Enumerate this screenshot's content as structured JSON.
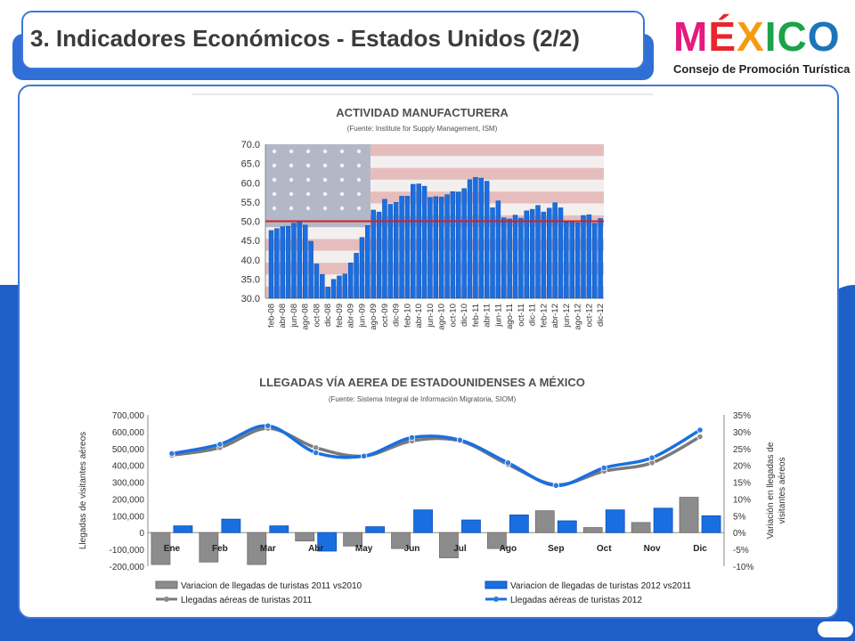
{
  "header": {
    "title": "3. Indicadores Económicos - Estados Unidos (2/2)"
  },
  "logo": {
    "letters": [
      "M",
      "É",
      "X",
      "I",
      "C",
      "O"
    ],
    "letter_colors": [
      "#e5197e",
      "#e8262b",
      "#f39c12",
      "#1aa34a",
      "#1aa34a",
      "#1b75bb"
    ],
    "subtitle": "Consejo de Promoción Turística"
  },
  "colors": {
    "accent_blue": "#1f5fc9",
    "bar_blue": "#1a6fe0",
    "bar_gray": "#8c8c8c",
    "threshold_red": "#d42020"
  },
  "chart_data": [
    {
      "type": "bar",
      "title": "ACTIVIDAD MANUFACTURERA",
      "subtitle": "(Fuente: Institute for Supply Management, ISM)",
      "ylim": [
        30,
        70
      ],
      "yticks": [
        "70.0",
        "65.0",
        "60.0",
        "55.0",
        "50.0",
        "45.0",
        "40.0",
        "35.0",
        "30.0"
      ],
      "reference_line": 50,
      "background": "us-flag",
      "categories": [
        "feb-08",
        "mar-08",
        "abr-08",
        "may-08",
        "jun-08",
        "jul-08",
        "ago-08",
        "sep-08",
        "oct-08",
        "nov-08",
        "dic-08",
        "ene-09",
        "feb-09",
        "mar-09",
        "abr-09",
        "may-09",
        "jun-09",
        "jul-09",
        "ago-09",
        "sep-09",
        "oct-09",
        "nov-09",
        "dic-09",
        "ene-10",
        "feb-10",
        "mar-10",
        "abr-10",
        "may-10",
        "jun-10",
        "jul-10",
        "ago-10",
        "sep-10",
        "oct-10",
        "nov-10",
        "dic-10",
        "ene-11",
        "feb-11",
        "mar-11",
        "abr-11",
        "may-11",
        "jun-11",
        "jul-11",
        "ago-11",
        "sep-11",
        "oct-11",
        "nov-11",
        "dic-11",
        "ene-12",
        "feb-12",
        "mar-12",
        "abr-12",
        "may-12",
        "jun-12",
        "jul-12",
        "ago-12",
        "sep-12",
        "oct-12",
        "nov-12",
        "dic-12"
      ],
      "tick_labels": [
        "feb-08",
        "abr-08",
        "jun-08",
        "ago-08",
        "oct-08",
        "dic-08",
        "feb-09",
        "abr-09",
        "jun-09",
        "ago-09",
        "oct-09",
        "dic-09",
        "feb-10",
        "abr-10",
        "jun-10",
        "ago-10",
        "oct-10",
        "dic-10",
        "feb-11",
        "abr-11",
        "jun-11",
        "ago-11",
        "oct-11",
        "dic-11",
        "feb-12",
        "abr-12",
        "jun-12",
        "ago-12",
        "oct-12",
        "dic-12"
      ],
      "values": [
        47.6,
        48.1,
        48.6,
        48.7,
        49.5,
        49.9,
        49.0,
        44.8,
        38.9,
        36.2,
        32.9,
        34.9,
        35.8,
        36.3,
        39.2,
        41.7,
        45.8,
        48.9,
        52.9,
        52.4,
        55.7,
        54.4,
        54.9,
        56.5,
        56.5,
        59.6,
        59.7,
        59.1,
        56.2,
        56.4,
        56.3,
        56.9,
        57.7,
        57.6,
        58.5,
        60.8,
        61.4,
        61.2,
        60.4,
        53.5,
        55.3,
        50.9,
        50.6,
        51.6,
        50.8,
        52.7,
        53.1,
        54.1,
        52.4,
        53.4,
        54.8,
        53.5,
        49.7,
        49.8,
        49.6,
        51.5,
        51.7,
        49.5,
        50.7
      ]
    },
    {
      "type": "bar+line",
      "title": "LLEGADAS VÍA AEREA DE ESTADOUNIDENSES A MÉXICO",
      "subtitle": "(Fuente: Sistema Integral de Información Migratoria, SIOM)",
      "categories": [
        "Ene",
        "Feb",
        "Mar",
        "Abr",
        "May",
        "Jun",
        "Jul",
        "Ago",
        "Sep",
        "Oct",
        "Nov",
        "Dic"
      ],
      "y_left_label": "Llegadas de visitantes aéreos",
      "y_right_label_line1": "Variación en llegadas de",
      "y_right_label_line2": "visitantes aéreos",
      "y_left_ticks": [
        "700,000",
        "600,000",
        "500,000",
        "400,000",
        "300,000",
        "200,000",
        "100,000",
        "0",
        "-100,000",
        "-200,000"
      ],
      "y_right_ticks": [
        "35%",
        "30%",
        "25%",
        "20%",
        "15%",
        "10%",
        "5%",
        "0%",
        "-5%",
        "-10%"
      ],
      "ylim_left": [
        -200000,
        700000
      ],
      "ylim_right": [
        -10,
        35
      ],
      "legend_position": "bottom",
      "series": [
        {
          "name": "Variacion de llegadas de turistas 2011 vs2010",
          "kind": "bar",
          "axis": "left",
          "values": [
            -190000,
            -175000,
            -190000,
            -50000,
            -80000,
            -95000,
            -150000,
            -95000,
            130000,
            30000,
            60000,
            210000
          ]
        },
        {
          "name": "Variacion de llegadas de turistas 2012 vs2011",
          "kind": "bar",
          "axis": "left",
          "values": [
            40000,
            80000,
            40000,
            -110000,
            35000,
            135000,
            75000,
            105000,
            70000,
            135000,
            145000,
            100000
          ]
        },
        {
          "name": "Llegadas aéreas de turistas 2011",
          "kind": "line",
          "axis": "left",
          "values": [
            460000,
            505000,
            620000,
            505000,
            455000,
            545000,
            545000,
            405000,
            285000,
            365000,
            415000,
            570000
          ]
        },
        {
          "name": "Llegadas aéreas de turistas 2012",
          "kind": "line",
          "axis": "left",
          "values": [
            470000,
            525000,
            635000,
            475000,
            455000,
            565000,
            550000,
            415000,
            280000,
            385000,
            445000,
            610000
          ]
        }
      ]
    }
  ]
}
